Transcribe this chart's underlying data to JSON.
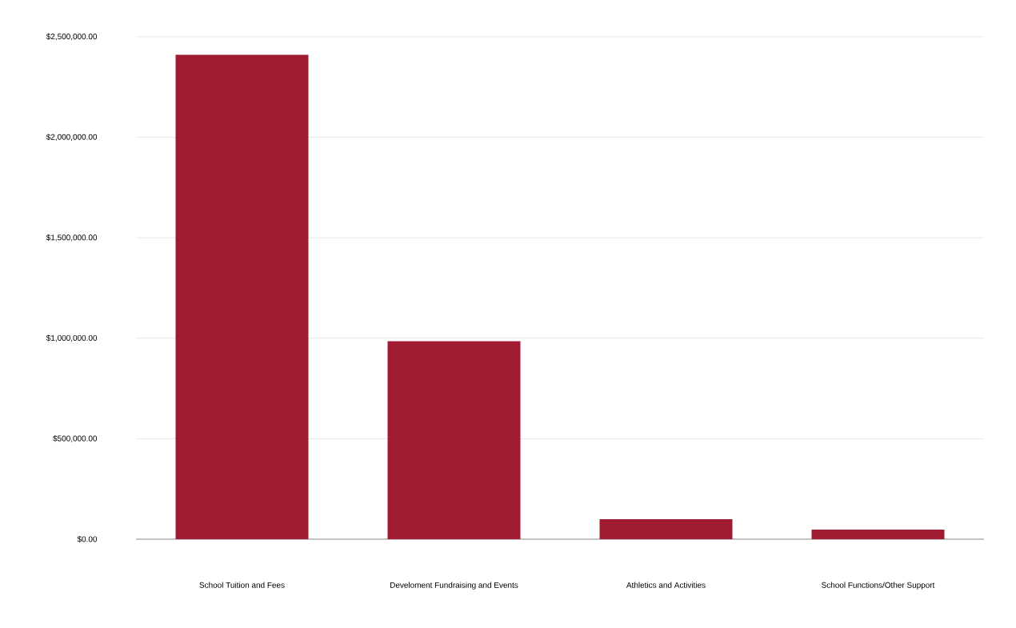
{
  "chart_data": {
    "type": "bar",
    "categories": [
      "School Tuition and Fees",
      "Develoment Fundraising and Events",
      "Athletics and Activities",
      "School Functions/Other Support"
    ],
    "values": [
      2410000,
      985000,
      100000,
      48000
    ],
    "color": "#9e1b32",
    "ylim": [
      0,
      2500000
    ],
    "yticks": [
      {
        "value": 0,
        "label": "$0.00"
      },
      {
        "value": 500000,
        "label": "$500,000.00"
      },
      {
        "value": 1000000,
        "label": "$1,000,000.00"
      },
      {
        "value": 1500000,
        "label": "$1,500,000.00"
      },
      {
        "value": 2000000,
        "label": "$2,000,000.00"
      },
      {
        "value": 2500000,
        "label": "$2,500,000.00"
      }
    ],
    "grid": "y"
  }
}
